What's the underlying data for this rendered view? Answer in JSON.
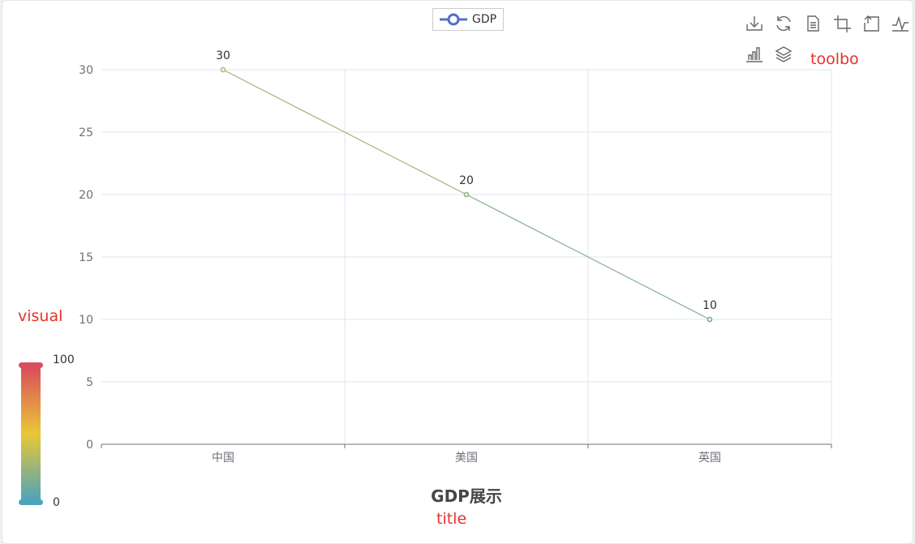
{
  "chart_data": {
    "type": "line",
    "categories": [
      "中国",
      "美国",
      "英国"
    ],
    "series": [
      {
        "name": "GDP",
        "values": [
          30,
          20,
          10
        ]
      }
    ],
    "title": "GDP展示",
    "xlabel": "",
    "ylabel": "",
    "ylim": [
      0,
      30
    ],
    "yticks": [
      0,
      5,
      10,
      15,
      20,
      25,
      30
    ],
    "grid": true,
    "legend": "top-center",
    "data_labels": true,
    "visual_map": {
      "min": 0,
      "max": 100,
      "colors": [
        "#50a3ba",
        "#eac736",
        "#d94e5d"
      ]
    }
  },
  "legend": {
    "label": "GDP",
    "color": "#5470c6"
  },
  "toolbox": {
    "icons": [
      "download-icon",
      "refresh-icon",
      "data-view-icon",
      "zoom-icon",
      "zoom-reset-icon",
      "line-switch-icon",
      "bar-switch-icon",
      "stack-icon"
    ]
  },
  "annotations": {
    "toolbox": "toolbo",
    "visual": "visual",
    "title": "title"
  },
  "colors": {
    "axis": "#6e7079",
    "grid": "#e0e6f1",
    "annotation": "#e8312a",
    "title": "#464646"
  }
}
